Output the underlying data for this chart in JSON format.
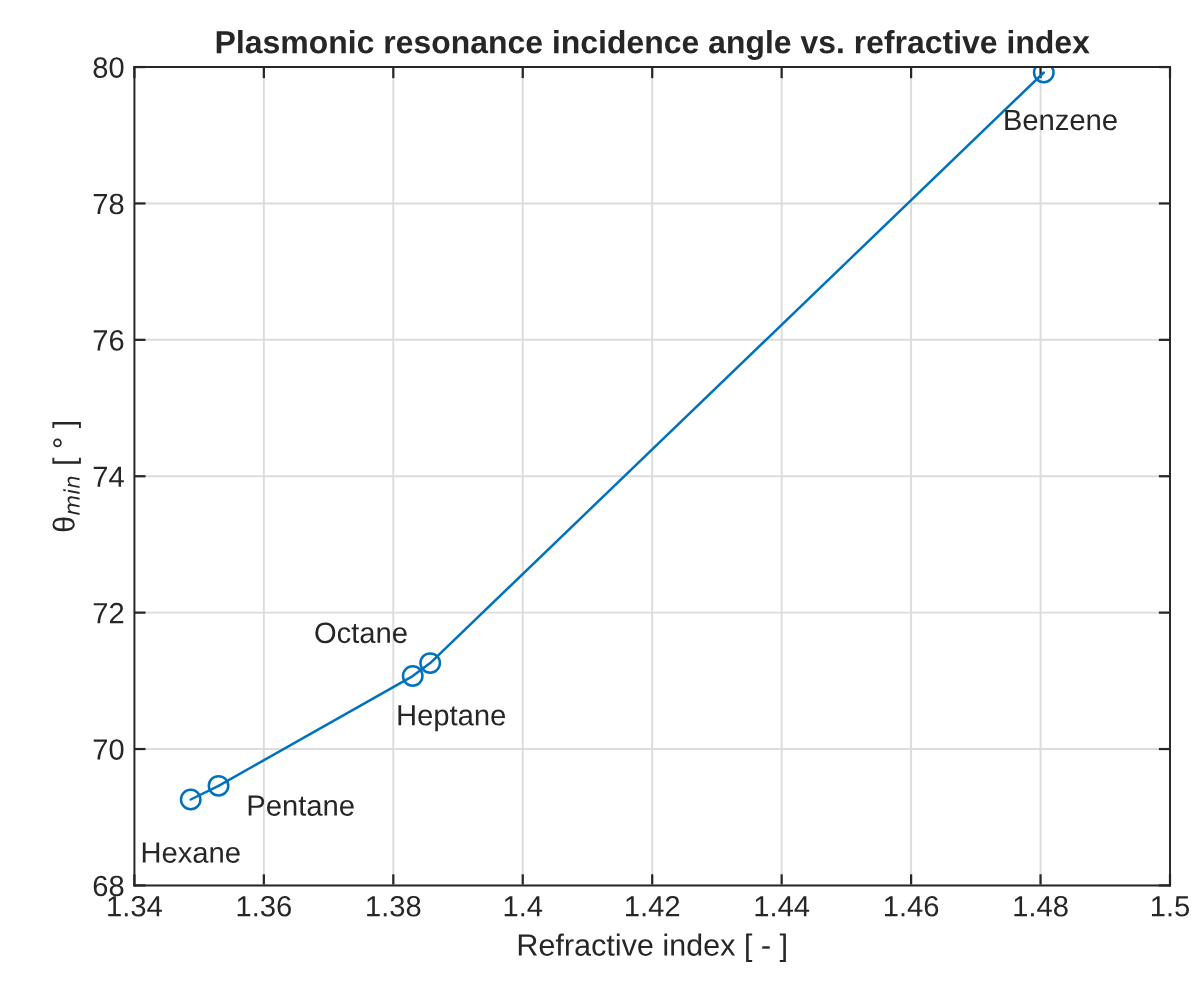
{
  "chart_data": {
    "type": "line",
    "title": "Plasmonic resonance incidence angle vs. refractive index",
    "xlabel": "Refractive index [ - ]",
    "ylabel": "θ$_{min}$ [ ° ]",
    "x": [
      1.3487,
      1.353,
      1.383,
      1.3857,
      1.4805
    ],
    "series": [
      {
        "color": "#0072bd",
        "values": [
          69.26,
          69.46,
          71.07,
          71.26,
          79.92
        ]
      }
    ],
    "marker": "circle",
    "line_style": "solid",
    "grid": true,
    "xlim": [
      1.34,
      1.5
    ],
    "xticks": [
      1.34,
      1.36,
      1.38,
      1.4,
      1.42,
      1.44,
      1.46,
      1.48,
      1.5
    ],
    "ylim": [
      68,
      80
    ],
    "yticks": [
      68,
      70,
      72,
      74,
      76,
      78,
      80
    ],
    "annotations": [
      {
        "text": "Hexane",
        "x": 1.3487,
        "y": 69.26
      },
      {
        "text": "Pentane",
        "x": 1.353,
        "y": 69.46
      },
      {
        "text": "Heptane",
        "x": 1.383,
        "y": 71.07
      },
      {
        "text": "Octane",
        "x": 1.3857,
        "y": 71.26
      },
      {
        "text": "Benzene",
        "x": 1.4805,
        "y": 79.92
      }
    ]
  }
}
